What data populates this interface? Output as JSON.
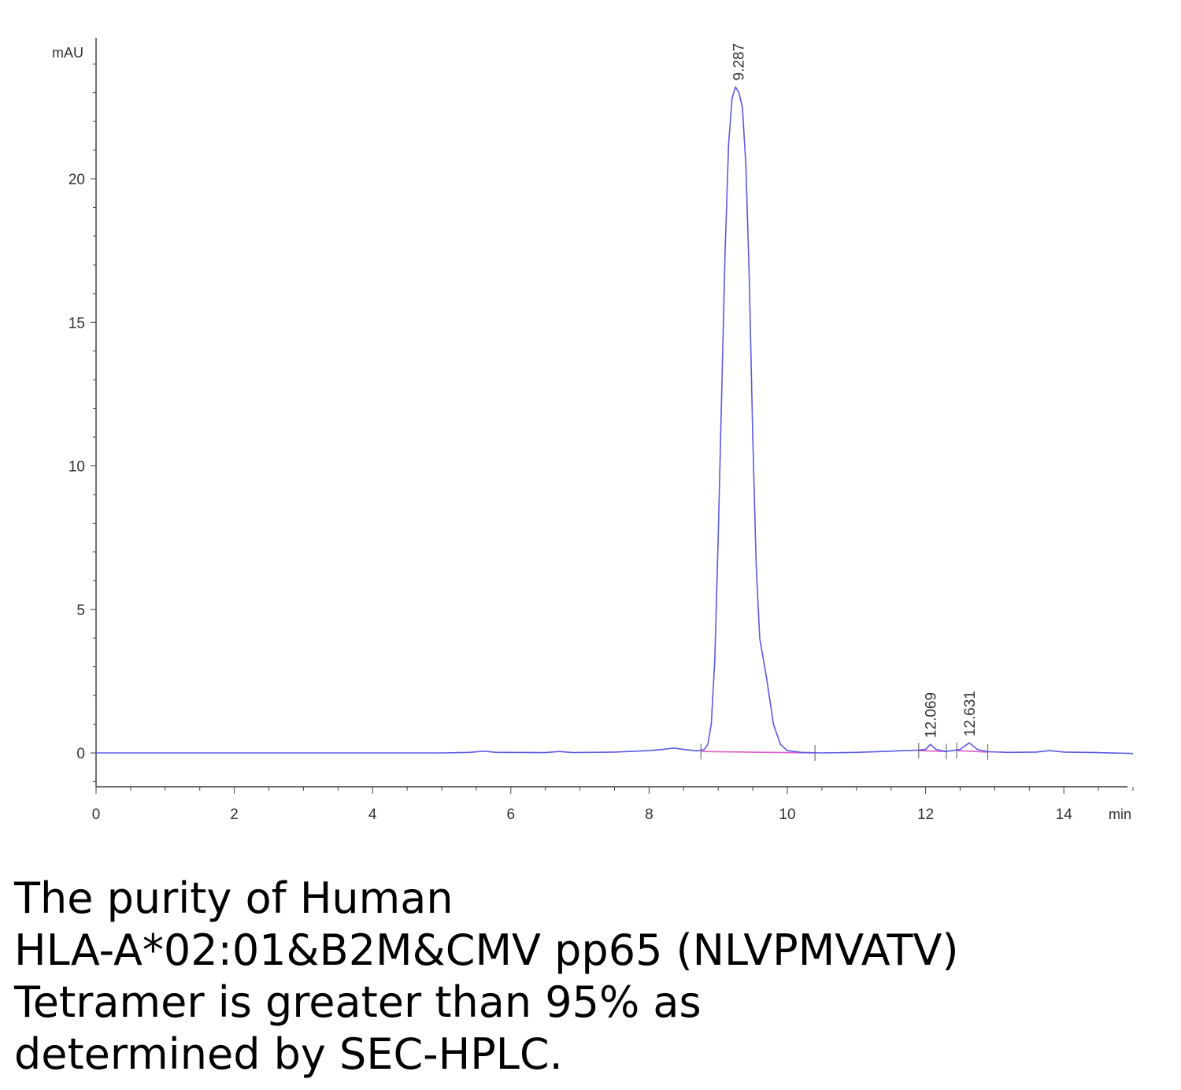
{
  "chart_data": {
    "type": "line",
    "ylabel": "mAU",
    "xlabel": "min",
    "xlim": [
      0,
      15
    ],
    "ylim": [
      -1.2,
      24.5
    ],
    "x_ticks": [
      0,
      2,
      4,
      6,
      8,
      10,
      12,
      14
    ],
    "y_ticks": [
      0,
      5,
      10,
      15,
      20
    ],
    "series": [
      {
        "color": "#5a5ae6",
        "x": [
          0,
          1,
          2,
          3,
          4,
          5,
          5.4,
          5.6,
          5.8,
          6.5,
          6.7,
          6.9,
          7.5,
          8.0,
          8.2,
          8.35,
          8.5,
          8.7,
          8.8,
          8.85,
          8.9,
          8.95,
          9.0,
          9.05,
          9.1,
          9.15,
          9.2,
          9.25,
          9.3,
          9.35,
          9.4,
          9.45,
          9.5,
          9.55,
          9.6,
          9.65,
          9.7,
          9.75,
          9.8,
          9.9,
          10.0,
          10.2,
          10.5,
          11.0,
          11.5,
          11.9,
          12.0,
          12.069,
          12.15,
          12.3,
          12.5,
          12.631,
          12.75,
          12.9,
          13.2,
          13.6,
          13.8,
          14.0,
          14.5,
          15.0
        ],
        "y": [
          0,
          0,
          0,
          0,
          0,
          0,
          0.02,
          0.06,
          0.02,
          0.01,
          0.05,
          0.01,
          0.03,
          0.08,
          0.12,
          0.17,
          0.12,
          0.07,
          0.12,
          0.3,
          1.0,
          3.2,
          7.5,
          12.5,
          17.5,
          21.2,
          22.8,
          23.2,
          23.0,
          22.5,
          20.5,
          16.5,
          11.0,
          6.5,
          4.0,
          3.3,
          2.6,
          1.8,
          1.0,
          0.3,
          0.08,
          0.02,
          0.0,
          0.02,
          0.06,
          0.1,
          0.12,
          0.3,
          0.12,
          0.05,
          0.12,
          0.35,
          0.12,
          0.04,
          0.02,
          0.03,
          0.08,
          0.03,
          0.01,
          -0.02
        ]
      }
    ],
    "baselines": [
      {
        "color": "#e05cc8",
        "x": [
          8.75,
          10.4
        ],
        "y": [
          0.05,
          0.0
        ]
      },
      {
        "color": "#e05cc8",
        "x": [
          11.9,
          12.3
        ],
        "y": [
          0.08,
          0.05
        ]
      },
      {
        "color": "#e05cc8",
        "x": [
          12.45,
          12.9
        ],
        "y": [
          0.08,
          0.03
        ]
      }
    ],
    "peak_labels": [
      {
        "text": "9.287",
        "x": 9.287,
        "y": 23.2
      },
      {
        "text": "12.069",
        "x": 12.069,
        "y": 0.3
      },
      {
        "text": "12.631",
        "x": 12.631,
        "y": 0.35
      }
    ]
  },
  "caption": {
    "line1": "The purity of Human",
    "line2": "HLA-A*02:01&B2M&CMV pp65 (NLVPMVATV)",
    "line3": "Tetramer is greater than 95% as",
    "line4": "determined by SEC-HPLC."
  }
}
